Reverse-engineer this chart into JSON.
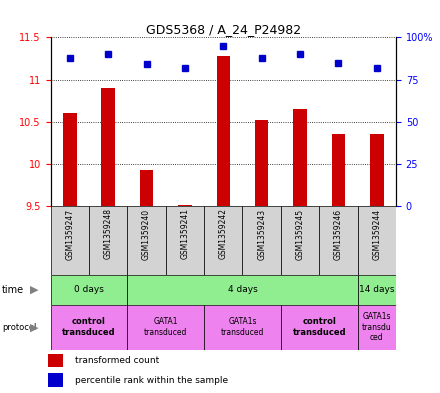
{
  "title": "GDS5368 / A_24_P24982",
  "samples": [
    "GSM1359247",
    "GSM1359248",
    "GSM1359240",
    "GSM1359241",
    "GSM1359242",
    "GSM1359243",
    "GSM1359245",
    "GSM1359246",
    "GSM1359244"
  ],
  "transformed_counts": [
    10.6,
    10.9,
    9.93,
    9.52,
    11.28,
    10.52,
    10.65,
    10.36,
    10.36
  ],
  "percentile_ranks": [
    88,
    90,
    84,
    82,
    95,
    88,
    90,
    85,
    82
  ],
  "ylim_left": [
    9.5,
    11.5
  ],
  "ylim_right": [
    0,
    100
  ],
  "yticks_left": [
    9.5,
    10.0,
    10.5,
    11.0,
    11.5
  ],
  "yticks_right": [
    0,
    25,
    50,
    75,
    100
  ],
  "yticklabels_left": [
    "9.5",
    "10",
    "10.5",
    "11",
    "11.5"
  ],
  "yticklabels_right": [
    "0",
    "25",
    "50",
    "75",
    "100%"
  ],
  "bar_color": "#cc0000",
  "dot_color": "#0000cc",
  "bar_bottom": 9.5,
  "bar_width": 0.35,
  "dot_size": 4,
  "time_groups": [
    {
      "label": "0 days",
      "start": 0,
      "end": 2
    },
    {
      "label": "4 days",
      "start": 2,
      "end": 8
    },
    {
      "label": "14 days",
      "start": 8,
      "end": 9
    }
  ],
  "protocol_groups": [
    {
      "label": "control\ntransduced",
      "start": 0,
      "end": 2,
      "bold": true
    },
    {
      "label": "GATA1\ntransduced",
      "start": 2,
      "end": 4,
      "bold": false
    },
    {
      "label": "GATA1s\ntransduced",
      "start": 4,
      "end": 6,
      "bold": false
    },
    {
      "label": "control\ntransduced",
      "start": 6,
      "end": 8,
      "bold": true
    },
    {
      "label": "GATA1s\ntransdu\nced",
      "start": 8,
      "end": 9,
      "bold": false
    }
  ],
  "time_color": "#90ee90",
  "protocol_color": "#ee82ee",
  "sample_bg_color": "#d3d3d3",
  "legend_red_label": "transformed count",
  "legend_blue_label": "percentile rank within the sample",
  "bg_color": "#ffffff"
}
